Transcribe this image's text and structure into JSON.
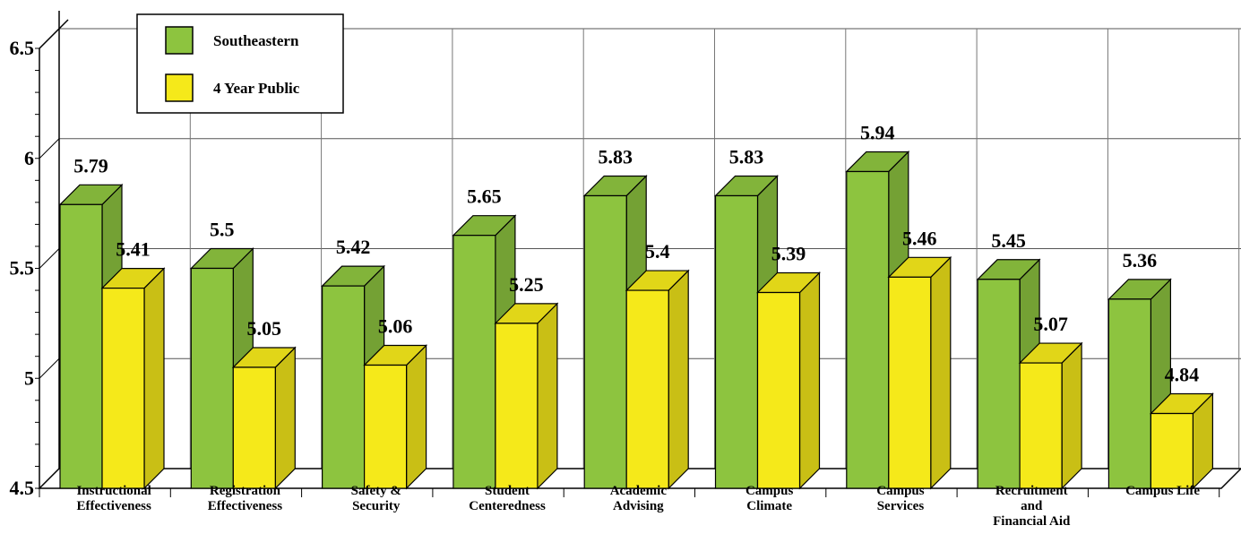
{
  "chart_data": {
    "type": "bar",
    "categories": [
      [
        "Instructional",
        "Effectiveness"
      ],
      [
        "Registration",
        "Effectiveness"
      ],
      [
        "Safety &",
        "Security"
      ],
      [
        "Student",
        "Centeredness"
      ],
      [
        "Academic",
        "Advising"
      ],
      [
        "Campus",
        "Climate"
      ],
      [
        "Campus",
        "Services"
      ],
      [
        "Recruitment",
        "and",
        "Financial Aid"
      ],
      [
        "Campus Life"
      ]
    ],
    "series": [
      {
        "name": "Southeastern",
        "values": [
          5.79,
          5.5,
          5.42,
          5.65,
          5.83,
          5.83,
          5.94,
          5.45,
          5.36
        ],
        "color": "#8dc43f"
      },
      {
        "name": "4 Year Public",
        "values": [
          5.41,
          5.05,
          5.06,
          5.25,
          5.4,
          5.39,
          5.46,
          5.07,
          4.84
        ],
        "color": "#f5e91a"
      }
    ],
    "ylim": [
      4.5,
      6.5
    ],
    "yticks": [
      "4.5",
      "5",
      "5.5",
      "6",
      "6.5"
    ],
    "grid": true,
    "legend_position": "top-left",
    "style": "3d-bar"
  }
}
